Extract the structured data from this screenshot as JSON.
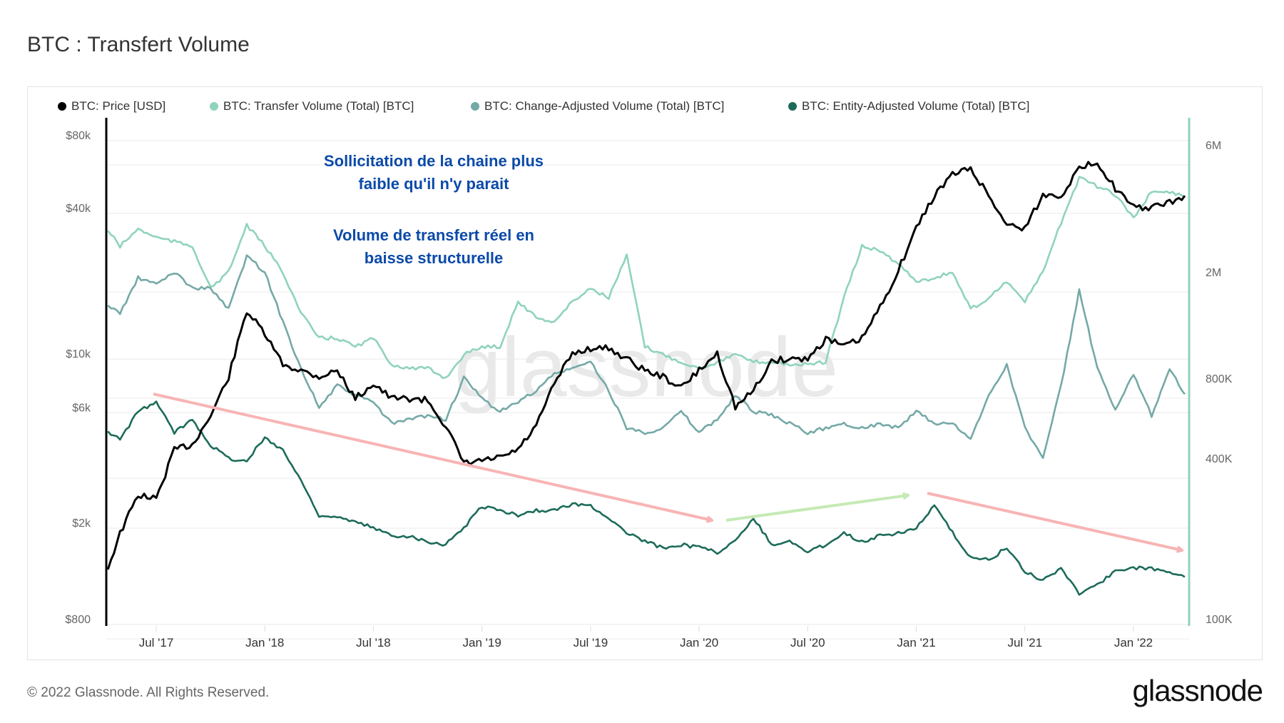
{
  "title": "BTC : Transfert Volume",
  "footer": "© 2022 Glassnode. All Rights Reserved.",
  "logo_text": "glassnode",
  "watermark": "glassnode",
  "annotations": {
    "line1": "Sollicitation de la chaine plus",
    "line2": "faible qu'il n'y parait",
    "line3": "Volume de transfert réel en",
    "line4": "baisse structurelle",
    "color": "#0b4aa8"
  },
  "chart_data": {
    "type": "line",
    "title": "BTC : Transfert Volume",
    "legend_position": "top-left",
    "grid": true,
    "x_ticks": [
      "Jul '17",
      "Jan '18",
      "Jul '18",
      "Jan '19",
      "Jul '19",
      "Jan '20",
      "Jul '20",
      "Jan '21",
      "Jul '21",
      "Jan '22"
    ],
    "y_left": {
      "scale": "log",
      "range": [
        800,
        80000
      ],
      "ticks": [
        "$80k",
        "$40k",
        "$10k",
        "$6k",
        "$2k",
        "$800"
      ]
    },
    "y_right": {
      "scale": "log",
      "range": [
        100000,
        6000000
      ],
      "ticks": [
        "6M",
        "2M",
        "800K",
        "400K",
        "100K"
      ]
    },
    "x": [
      "2017-04",
      "2017-05",
      "2017-06",
      "2017-07",
      "2017-08",
      "2017-09",
      "2017-10",
      "2017-11",
      "2017-12",
      "2018-01",
      "2018-02",
      "2018-03",
      "2018-04",
      "2018-05",
      "2018-06",
      "2018-07",
      "2018-08",
      "2018-09",
      "2018-10",
      "2018-11",
      "2018-12",
      "2019-01",
      "2019-02",
      "2019-03",
      "2019-04",
      "2019-05",
      "2019-06",
      "2019-07",
      "2019-08",
      "2019-09",
      "2019-10",
      "2019-11",
      "2019-12",
      "2020-01",
      "2020-02",
      "2020-03",
      "2020-04",
      "2020-05",
      "2020-06",
      "2020-07",
      "2020-08",
      "2020-09",
      "2020-10",
      "2020-11",
      "2020-12",
      "2021-01",
      "2021-02",
      "2021-03",
      "2021-04",
      "2021-05",
      "2021-06",
      "2021-07",
      "2021-08",
      "2021-09",
      "2021-10",
      "2021-11",
      "2021-12",
      "2022-01",
      "2022-02",
      "2022-03",
      "2022-04"
    ],
    "series": [
      {
        "name": "BTC: Price [USD]",
        "axis": "left",
        "color": "#000000",
        "values": [
          1100,
          1800,
          2600,
          2500,
          4000,
          4200,
          5500,
          8000,
          15000,
          12000,
          9000,
          8500,
          8000,
          8500,
          6500,
          7500,
          6500,
          6500,
          6400,
          5000,
          3500,
          3600,
          3700,
          4000,
          5000,
          7500,
          10000,
          10500,
          10500,
          9500,
          8500,
          8000,
          7200,
          8500,
          10000,
          6000,
          7000,
          9300,
          9500,
          9500,
          11500,
          10700,
          11500,
          15500,
          22000,
          33000,
          45000,
          55000,
          58000,
          45000,
          34000,
          33000,
          45000,
          45000,
          58000,
          62000,
          48000,
          40000,
          40000,
          42000,
          45000
        ]
      },
      {
        "name": "BTC: Transfer Volume (Total) [BTC]",
        "axis": "right",
        "color": "#8fd3bd",
        "values": [
          3070000,
          2500000,
          2900000,
          2700000,
          2600000,
          2500000,
          1740000,
          2000000,
          3000000,
          2500000,
          2000000,
          1400000,
          1130000,
          1130000,
          1050000,
          1130000,
          900000,
          870000,
          870000,
          800000,
          980000,
          1050000,
          1050000,
          1550000,
          1350000,
          1300000,
          1550000,
          1740000,
          1600000,
          2300000,
          1050000,
          980000,
          920000,
          870000,
          920000,
          980000,
          920000,
          920000,
          900000,
          900000,
          920000,
          1600000,
          2500000,
          2400000,
          2150000,
          1850000,
          1900000,
          2000000,
          1450000,
          1600000,
          1850000,
          1550000,
          2000000,
          3070000,
          4500000,
          4200000,
          3900000,
          3200000,
          4000000,
          4000000,
          3800000
        ]
      },
      {
        "name": "BTC: Change-Adjusted Volume (Total) [BTC]",
        "axis": "right",
        "color": "#74a9a7",
        "values": [
          1550000,
          1400000,
          1900000,
          1800000,
          2000000,
          1740000,
          1740000,
          1450000,
          2300000,
          2000000,
          1300000,
          870000,
          620000,
          750000,
          690000,
          650000,
          540000,
          560000,
          580000,
          560000,
          800000,
          670000,
          600000,
          650000,
          720000,
          830000,
          870000,
          920000,
          720000,
          520000,
          500000,
          520000,
          600000,
          500000,
          560000,
          690000,
          600000,
          580000,
          540000,
          500000,
          520000,
          540000,
          520000,
          540000,
          520000,
          600000,
          540000,
          540000,
          470000,
          690000,
          900000,
          520000,
          400000,
          750000,
          1700000,
          870000,
          600000,
          830000,
          580000,
          870000,
          670000
        ]
      },
      {
        "name": "BTC: Entity-Adjusted Volume (Total) [BTC]",
        "axis": "right",
        "color": "#1c6b5a",
        "values": [
          520000,
          470000,
          600000,
          650000,
          500000,
          560000,
          450000,
          400000,
          390000,
          480000,
          430000,
          330000,
          245000,
          240000,
          230000,
          220000,
          205000,
          205000,
          195000,
          190000,
          220000,
          265000,
          255000,
          245000,
          255000,
          255000,
          270000,
          265000,
          240000,
          210000,
          195000,
          185000,
          190000,
          185000,
          178000,
          195000,
          240000,
          190000,
          195000,
          178000,
          190000,
          210000,
          195000,
          205000,
          210000,
          220000,
          265000,
          210000,
          170000,
          166000,
          185000,
          150000,
          140000,
          155000,
          125000,
          135000,
          150000,
          155000,
          155000,
          150000,
          144000
        ]
      }
    ]
  }
}
